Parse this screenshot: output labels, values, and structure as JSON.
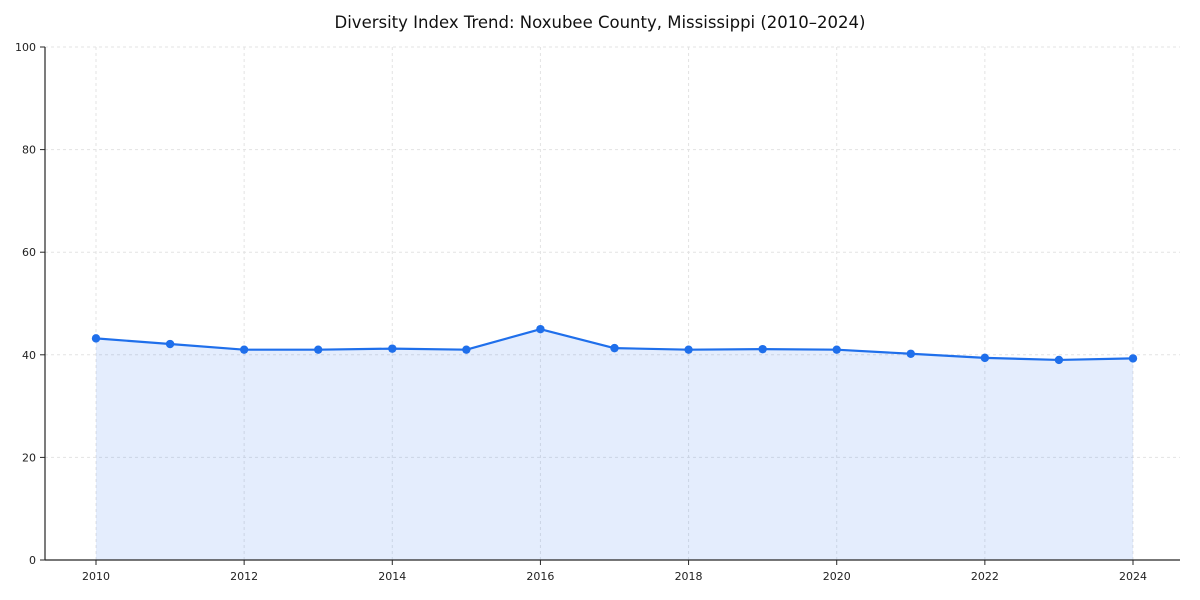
{
  "chart_data": {
    "type": "line",
    "title": "Diversity Index Trend: Noxubee County, Mississippi (2010–2024)",
    "xlabel": "",
    "ylabel": "",
    "x": [
      2010,
      2011,
      2012,
      2013,
      2014,
      2015,
      2016,
      2017,
      2018,
      2019,
      2020,
      2021,
      2022,
      2023,
      2024
    ],
    "series": [
      {
        "name": "Diversity Index",
        "values": [
          43.2,
          42.1,
          41.0,
          41.0,
          41.2,
          41.0,
          45.0,
          41.3,
          41.0,
          41.1,
          41.0,
          40.2,
          39.4,
          39.0,
          39.3
        ]
      }
    ],
    "ylim": [
      0,
      100
    ],
    "yticks": [
      0,
      20,
      40,
      60,
      80,
      100
    ],
    "xticks": [
      2010,
      2012,
      2014,
      2016,
      2018,
      2020,
      2022,
      2024
    ],
    "grid": "dashed",
    "legend_position": "none",
    "line_color": "#1f6feb",
    "marker_color": "#1f6feb",
    "fill_color": "#1f6feb",
    "fill_opacity": 0.12,
    "grid_color": "#e3e3e3",
    "axis_color": "#262626",
    "tick_label_color": "#222222"
  }
}
